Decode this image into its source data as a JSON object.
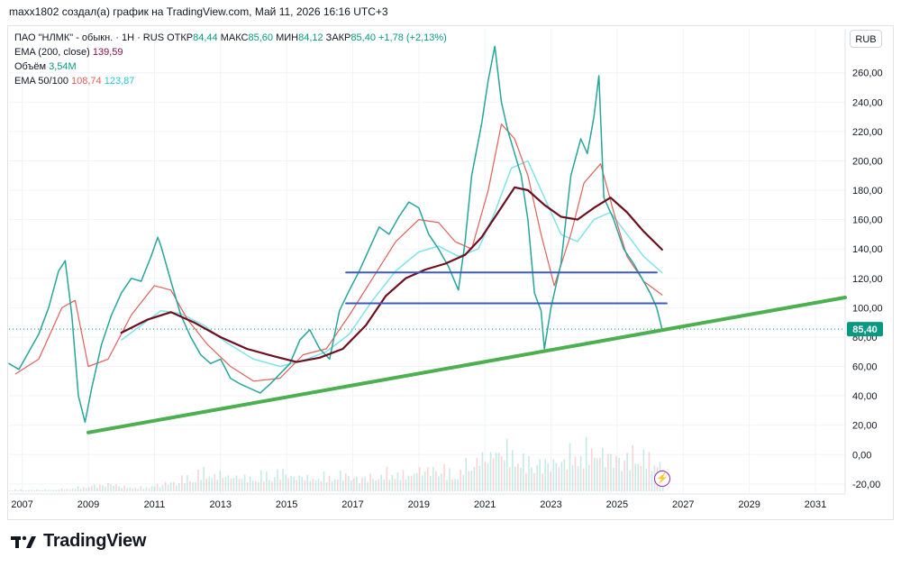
{
  "caption": "maxx1802 создал(а) график на TradingView.com, Май 11, 2026 16:16 UTC+3",
  "legend": {
    "line1_prefix": "ПАО \"НЛМК\" - обыкн. · 1Н · RUS",
    "open_label": "ОТКР",
    "open": "84,44",
    "high_label": "МАКС",
    "high": "85,60",
    "low_label": "МИН",
    "low": "84,12",
    "close_label": "ЗАКР",
    "close": "85,40",
    "change": "+1,78 (+2,13%)",
    "ema200_label": "EMA (200, close)",
    "ema200_value": "139,59",
    "volume_label": "Объём",
    "volume_value": "3,54M",
    "ema50_100_label": "EMA 50/100",
    "ema50_value": "108,74",
    "ema100_value": "123,87"
  },
  "currency_button": "RUB",
  "brand": "TradingView",
  "colors": {
    "price": "#26a69a",
    "price_dark": "#ef5350",
    "ema200": "#6d0f1f",
    "ema50": "#e0605a",
    "ema100": "#7fe3ea",
    "support": "#4caf50",
    "levels": "#3b5bbf",
    "last_price": "#089981"
  },
  "chart_data": {
    "type": "line",
    "title": "",
    "xlabel": "",
    "ylabel": "",
    "xlim": [
      2006.6,
      2031.9
    ],
    "ylim": [
      -25,
      285
    ],
    "x_ticks": [
      "2007",
      "2009",
      "2011",
      "2013",
      "2015",
      "2017",
      "2019",
      "2021",
      "2023",
      "2025",
      "2027",
      "2029",
      "2031"
    ],
    "y_ticks": [
      "260,00",
      "240,00",
      "220,00",
      "200,00",
      "180,00",
      "160,00",
      "140,00",
      "120,00",
      "100,00",
      "80,00",
      "60,00",
      "40,00",
      "20,00",
      "0,00",
      "-20,00"
    ],
    "last_price_label": "85,40",
    "last_price": 85.4,
    "series": [
      {
        "name": "ПАО \"НЛМК\" - обыкн.",
        "x": [
          2006.6,
          2006.9,
          2007.2,
          2007.5,
          2007.8,
          2008.1,
          2008.3,
          2008.5,
          2008.7,
          2008.9,
          2009.1,
          2009.4,
          2009.7,
          2010.0,
          2010.3,
          2010.6,
          2010.9,
          2011.1,
          2011.2,
          2011.5,
          2011.8,
          2012.1,
          2012.4,
          2012.7,
          2013.0,
          2013.3,
          2013.6,
          2013.9,
          2014.2,
          2014.5,
          2014.8,
          2015.1,
          2015.4,
          2015.7,
          2016.0,
          2016.3,
          2016.6,
          2016.9,
          2017.2,
          2017.5,
          2017.8,
          2018.1,
          2018.4,
          2018.7,
          2019.0,
          2019.3,
          2019.6,
          2019.9,
          2020.2,
          2020.4,
          2020.6,
          2020.9,
          2021.1,
          2021.3,
          2021.5,
          2021.7,
          2021.9,
          2022.1,
          2022.3,
          2022.5,
          2022.7,
          2022.8,
          2023.0,
          2023.3,
          2023.6,
          2023.9,
          2024.1,
          2024.3,
          2024.45,
          2024.6,
          2024.9,
          2025.2,
          2025.5,
          2025.8,
          2026.0,
          2026.2,
          2026.36
        ],
        "values": [
          62,
          58,
          70,
          82,
          100,
          125,
          132,
          95,
          40,
          22,
          45,
          75,
          95,
          110,
          120,
          118,
          135,
          148,
          142,
          118,
          95,
          80,
          68,
          62,
          65,
          52,
          48,
          45,
          42,
          48,
          55,
          62,
          78,
          85,
          72,
          65,
          98,
          112,
          125,
          140,
          155,
          150,
          162,
          172,
          168,
          150,
          140,
          128,
          112,
          145,
          190,
          225,
          255,
          278,
          240,
          220,
          205,
          190,
          160,
          110,
          98,
          72,
          100,
          130,
          190,
          215,
          205,
          230,
          258,
          175,
          160,
          140,
          130,
          118,
          110,
          100,
          85.4
        ]
      },
      {
        "name": "EMA 50",
        "x": [
          2006.8,
          2007.5,
          2008.2,
          2008.6,
          2009.0,
          2009.6,
          2010.3,
          2011.0,
          2011.5,
          2012.0,
          2012.6,
          2013.3,
          2014.0,
          2014.8,
          2015.5,
          2016.2,
          2016.9,
          2017.6,
          2018.3,
          2019.0,
          2019.6,
          2020.1,
          2020.6,
          2021.1,
          2021.5,
          2021.9,
          2022.3,
          2022.7,
          2023.1,
          2023.6,
          2024.0,
          2024.5,
          2024.9,
          2025.3,
          2025.8,
          2026.36
        ],
        "values": [
          55,
          65,
          100,
          105,
          60,
          65,
          95,
          115,
          112,
          92,
          75,
          60,
          50,
          52,
          68,
          72,
          95,
          120,
          145,
          160,
          158,
          145,
          140,
          180,
          225,
          215,
          190,
          150,
          115,
          150,
          185,
          198,
          165,
          135,
          118,
          108.74
        ]
      },
      {
        "name": "EMA 100",
        "x": [
          2010.0,
          2010.6,
          2011.2,
          2011.8,
          2012.5,
          2013.2,
          2014.0,
          2014.8,
          2015.5,
          2016.2,
          2016.9,
          2017.6,
          2018.3,
          2019.0,
          2019.6,
          2020.2,
          2020.8,
          2021.3,
          2021.8,
          2022.3,
          2022.8,
          2023.3,
          2023.8,
          2024.3,
          2024.8,
          2025.3,
          2025.8,
          2026.36
        ],
        "values": [
          78,
          88,
          98,
          96,
          88,
          76,
          65,
          60,
          64,
          70,
          82,
          105,
          125,
          138,
          142,
          135,
          140,
          165,
          195,
          200,
          175,
          150,
          145,
          160,
          165,
          150,
          135,
          123.87
        ]
      },
      {
        "name": "EMA (200, close)",
        "x": [
          2010.0,
          2010.8,
          2011.5,
          2012.2,
          2013.0,
          2013.8,
          2014.6,
          2015.3,
          2016.0,
          2016.7,
          2017.4,
          2018.0,
          2018.6,
          2019.2,
          2019.8,
          2020.4,
          2020.9,
          2021.4,
          2021.9,
          2022.3,
          2022.8,
          2023.3,
          2023.8,
          2024.3,
          2024.8,
          2025.3,
          2025.8,
          2026.36
        ],
        "values": [
          83,
          92,
          97,
          90,
          80,
          72,
          67,
          63,
          66,
          72,
          88,
          108,
          120,
          126,
          130,
          136,
          148,
          165,
          182,
          180,
          170,
          162,
          160,
          168,
          175,
          165,
          152,
          139.59
        ]
      },
      {
        "name": "support",
        "x": [
          2009.0,
          2031.9
        ],
        "values": [
          15,
          107
        ]
      },
      {
        "name": "level-124",
        "x": [
          2016.8,
          2026.2
        ],
        "values": [
          124,
          124
        ]
      },
      {
        "name": "level-103",
        "x": [
          2016.8,
          2026.5
        ],
        "values": [
          103,
          103
        ]
      }
    ],
    "volume": {
      "x_range": [
        2006.6,
        2026.36
      ],
      "relative_levels": [
        0.02,
        0.02,
        0.02,
        0.03,
        0.05,
        0.08,
        0.1,
        0.06,
        0.05,
        0.08,
        0.12,
        0.18,
        0.25,
        0.22,
        0.2,
        0.18,
        0.22,
        0.25,
        0.2,
        0.18,
        0.2,
        0.22,
        0.18,
        0.2,
        0.25,
        0.22,
        0.28,
        0.3,
        0.25,
        0.35,
        0.45,
        0.55,
        0.5,
        0.4,
        0.38,
        0.42,
        0.5,
        0.55,
        0.48,
        0.45,
        0.5,
        0.4
      ]
    }
  }
}
